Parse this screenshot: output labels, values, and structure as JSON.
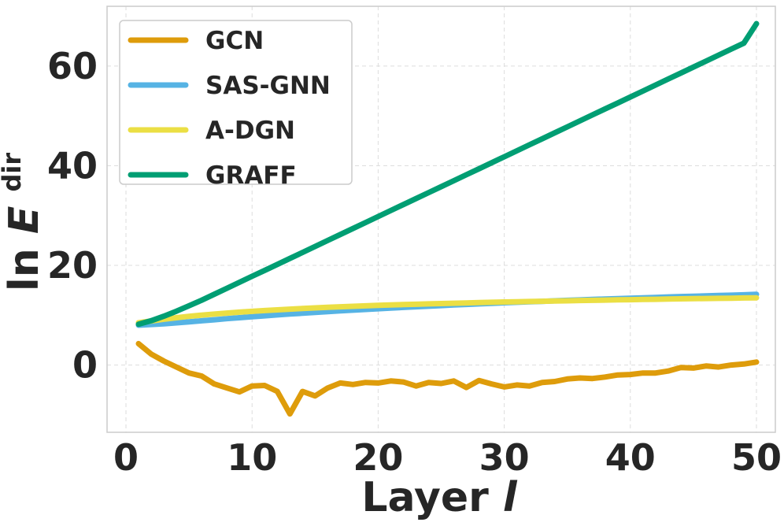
{
  "chart_data": {
    "type": "line",
    "xlabel": "Layer",
    "xlabel_var": "l",
    "ylabel": "ln",
    "ylabel_var": "E",
    "ylabel_sup": "dir",
    "xlim": [
      -1.5,
      51.5
    ],
    "ylim": [
      -13.5,
      72
    ],
    "xticks": [
      0,
      10,
      20,
      30,
      40,
      50
    ],
    "yticks": [
      0,
      20,
      40,
      60
    ],
    "grid": true,
    "legend_position": "top-left",
    "x": [
      1,
      2,
      3,
      4,
      5,
      6,
      7,
      8,
      9,
      10,
      11,
      12,
      13,
      14,
      15,
      16,
      17,
      18,
      19,
      20,
      21,
      22,
      23,
      24,
      25,
      26,
      27,
      28,
      29,
      30,
      31,
      32,
      33,
      34,
      35,
      36,
      37,
      38,
      39,
      40,
      41,
      42,
      43,
      44,
      45,
      46,
      47,
      48,
      49,
      50
    ],
    "series": [
      {
        "name": "GCN",
        "color": "#de9c0b",
        "values": [
          4.3,
          2.2,
          0.8,
          -0.4,
          -1.6,
          -2.2,
          -3.8,
          -4.6,
          -5.4,
          -4.2,
          -4.1,
          -5.3,
          -9.8,
          -5.3,
          -6.2,
          -4.6,
          -3.6,
          -3.9,
          -3.5,
          -3.6,
          -3.2,
          -3.4,
          -4.2,
          -3.5,
          -3.7,
          -3.2,
          -4.5,
          -3.1,
          -3.8,
          -4.4,
          -4.0,
          -4.2,
          -3.5,
          -3.3,
          -2.8,
          -2.6,
          -2.7,
          -2.4,
          -2.0,
          -1.9,
          -1.6,
          -1.6,
          -1.2,
          -0.5,
          -0.6,
          -0.2,
          -0.4,
          0.0,
          0.2,
          0.6
        ]
      },
      {
        "name": "SAS-GNN",
        "color": "#56b3e4",
        "values": [
          8.0,
          8.13,
          8.26,
          8.46,
          8.68,
          8.88,
          9.08,
          9.3,
          9.5,
          9.7,
          9.88,
          10.06,
          10.23,
          10.4,
          10.56,
          10.72,
          10.87,
          11.02,
          11.16,
          11.3,
          11.43,
          11.56,
          11.69,
          11.81,
          11.93,
          12.05,
          12.16,
          12.27,
          12.38,
          12.49,
          12.59,
          12.69,
          12.79,
          12.89,
          12.98,
          13.07,
          13.16,
          13.25,
          13.34,
          13.42,
          13.5,
          13.58,
          13.66,
          13.74,
          13.81,
          13.88,
          13.95,
          14.02,
          14.09,
          14.2
        ]
      },
      {
        "name": "A-DGN",
        "color": "#ebdf44",
        "values": [
          8.5,
          8.85,
          9.2,
          9.5,
          9.78,
          10.02,
          10.23,
          10.43,
          10.61,
          10.78,
          10.94,
          11.08,
          11.22,
          11.35,
          11.47,
          11.58,
          11.69,
          11.79,
          11.88,
          11.97,
          12.05,
          12.13,
          12.2,
          12.27,
          12.34,
          12.41,
          12.47,
          12.53,
          12.59,
          12.65,
          12.7,
          12.75,
          12.8,
          12.85,
          12.9,
          12.95,
          12.99,
          13.04,
          13.08,
          13.12,
          13.16,
          13.2,
          13.24,
          13.28,
          13.32,
          13.35,
          13.39,
          13.42,
          13.46,
          13.5
        ]
      },
      {
        "name": "GRAFF",
        "color": "#009e73",
        "values": [
          8.2,
          8.9,
          9.8,
          10.8,
          11.9,
          13.0,
          14.2,
          15.4,
          16.6,
          17.8,
          19.0,
          20.2,
          21.4,
          22.6,
          23.8,
          25.0,
          26.2,
          27.4,
          28.6,
          29.8,
          31.0,
          32.2,
          33.4,
          34.6,
          35.8,
          37.0,
          38.2,
          39.4,
          40.6,
          41.8,
          43.0,
          44.2,
          45.4,
          46.6,
          47.8,
          49.0,
          50.2,
          51.4,
          52.6,
          53.8,
          55.0,
          56.2,
          57.4,
          58.6,
          59.8,
          61.0,
          62.2,
          63.4,
          64.6,
          68.5
        ]
      }
    ]
  }
}
